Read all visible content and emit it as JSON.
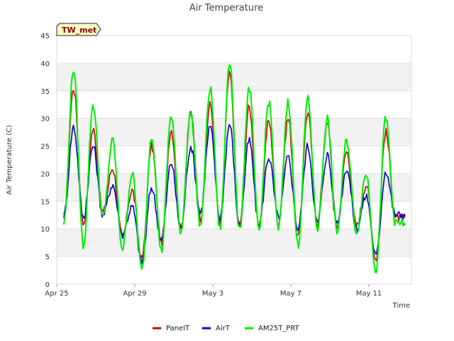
{
  "chart_data": {
    "type": "line",
    "title": "Air Temperature",
    "xlabel": "Time",
    "ylabel": "Air Temperature (C)",
    "badge": "TW_met",
    "ylim": [
      0,
      45
    ],
    "yticks": [
      0,
      5,
      10,
      15,
      20,
      25,
      30,
      35,
      40,
      45
    ],
    "xlim": [
      "Apr 25",
      "May 13"
    ],
    "xticks": [
      "Apr 25",
      "Apr 29",
      "May 3",
      "May 7",
      "May 11"
    ],
    "grid": true,
    "grid_style": "alternating horizontal bands",
    "legend_position": "bottom-center",
    "x": [
      "Apr 25",
      "Apr 25.5",
      "Apr 26",
      "Apr 26.5",
      "Apr 27",
      "Apr 27.5",
      "Apr 28",
      "Apr 28.5",
      "Apr 29",
      "Apr 29.5",
      "Apr 30",
      "Apr 30.5",
      "May 1",
      "May 1.5",
      "May 2",
      "May 2.5",
      "May 3",
      "May 3.5",
      "May 4",
      "May 4.5",
      "May 5",
      "May 5.5",
      "May 6",
      "May 6.5",
      "May 7",
      "May 7.5",
      "May 8",
      "May 8.5",
      "May 9",
      "May 9.5",
      "May 10",
      "May 10.5",
      "May 11",
      "May 11.5",
      "May 12",
      "May 12.5"
    ],
    "series": [
      {
        "name": "PanelT",
        "color": "#cc0000",
        "values": [
          12,
          35.5,
          11,
          28,
          13,
          21,
          8.5,
          17,
          4.5,
          25,
          7.5,
          28,
          10,
          31,
          12,
          32.5,
          11,
          38,
          10.5,
          32,
          10,
          29.5,
          11,
          30,
          8.5,
          31,
          11,
          29,
          10.5,
          24,
          10.5,
          18,
          4.5,
          27.5,
          12,
          12
        ]
      },
      {
        "name": "AirT",
        "color": "#0000cc",
        "values": [
          12.5,
          28.5,
          12,
          25,
          12.5,
          18,
          9,
          14,
          4,
          17.5,
          8,
          22,
          10,
          25,
          13,
          28.5,
          12,
          29,
          10.5,
          26,
          10.5,
          23,
          12,
          23,
          10,
          25,
          11,
          23.5,
          11,
          21,
          10,
          16,
          5,
          20.5,
          12.5,
          12.5
        ]
      },
      {
        "name": "AM25T_PRT",
        "color": "#00ee00",
        "values": [
          11,
          39,
          7,
          32.5,
          12,
          26,
          6.5,
          20,
          2.5,
          27,
          6,
          30.5,
          9.5,
          31,
          10.5,
          35.5,
          10,
          40.5,
          9.5,
          35.5,
          9.5,
          33,
          10,
          33,
          7,
          33.5,
          10,
          30,
          9.5,
          26,
          9.5,
          20,
          2.5,
          30,
          11,
          11
        ]
      }
    ]
  }
}
